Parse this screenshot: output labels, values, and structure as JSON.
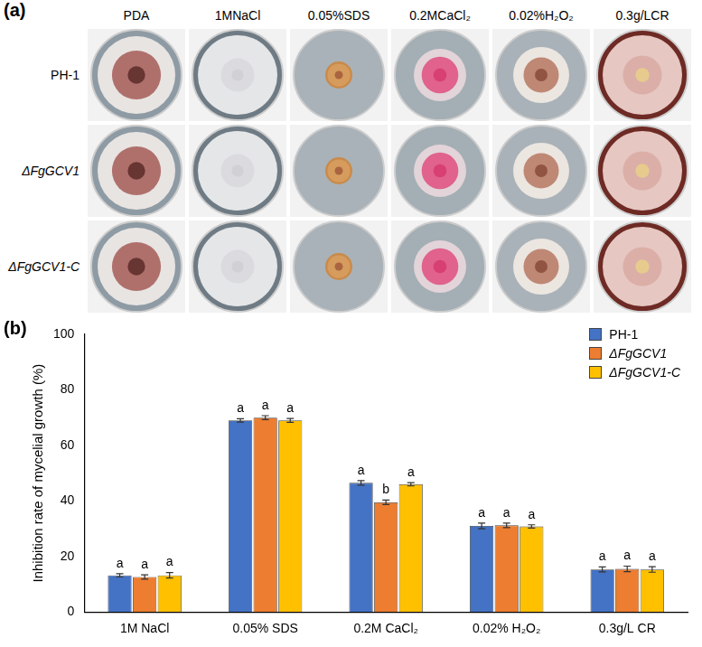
{
  "panel_labels": [
    "(a)",
    "(b)"
  ],
  "image_grid": {
    "columns": [
      "PDA",
      "1MNaCl",
      "0.05%SDS",
      "0.2MCaCl₂",
      "0.02%H₂O₂",
      "0.3g/LCR"
    ],
    "rows": [
      "PH-1",
      "ΔFgGCV1",
      "ΔFgGCV1-C"
    ]
  },
  "chart_data": {
    "type": "bar",
    "y_label": "Inhibition rate of mycelial growth (%)",
    "categories": [
      "1M NaCl",
      "0.05% SDS",
      "0.2M CaCl₂",
      "0.02% H₂O₂",
      "0.3g/L CR"
    ],
    "series": [
      {
        "name": "PH-1",
        "color": "#4472c4",
        "values": [
          13.2,
          69.0,
          46.5,
          31.0,
          15.3
        ],
        "errors": [
          0.6,
          0.6,
          0.8,
          1.0,
          0.9
        ],
        "letters": [
          "a",
          "a",
          "a",
          "a",
          "a"
        ]
      },
      {
        "name": "ΔFgGCV1",
        "color": "#ed7d31",
        "values": [
          12.6,
          70.0,
          39.5,
          31.2,
          15.5
        ],
        "errors": [
          0.8,
          0.7,
          0.8,
          0.8,
          1.0
        ],
        "letters": [
          "a",
          "a",
          "b",
          "a",
          "a"
        ]
      },
      {
        "name": "ΔFgGCV1-C",
        "color": "#ffc000",
        "values": [
          13.2,
          69.0,
          46.0,
          30.8,
          15.3
        ],
        "errors": [
          1.0,
          0.7,
          0.6,
          0.6,
          1.0
        ],
        "letters": [
          "a",
          "a",
          "a",
          "a",
          "a"
        ]
      }
    ],
    "ylim": [
      0,
      100
    ],
    "yticks": [
      0,
      20,
      40,
      60,
      80,
      100
    ],
    "grid": false,
    "legend": "upper right"
  }
}
